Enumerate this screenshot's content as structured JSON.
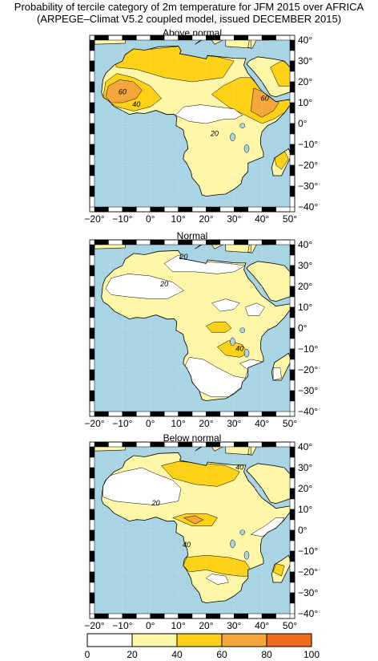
{
  "title": "Probability of tercile category of 2m temperature for JFM 2015 over AFRICA",
  "subtitle": "(ARPEGE–Climat V5.2 coupled model, issued DECEMBER  2015)",
  "colors": {
    "ocean": "#a8d4e4",
    "c0_20": "#ffffff",
    "c20_40": "#fff7a8",
    "c40_60": "#fcd116",
    "c60_80": "#f4a63a",
    "c80_100": "#ef6b1d"
  },
  "axes": {
    "lon_labels": [
      "−20°",
      "−10°",
      "0°",
      "10°",
      "20°",
      "30°",
      "40°",
      "50°"
    ],
    "lat_labels": [
      "40°",
      "30°",
      "20°",
      "10°",
      "0°",
      "−10°",
      "−20°",
      "−30°",
      "−40°"
    ]
  },
  "maps": [
    {
      "title": "Above normal",
      "contour_labels": [
        {
          "text": "60",
          "lon": -10,
          "lat": 14
        },
        {
          "text": "40",
          "lon": -5,
          "lat": 8
        },
        {
          "text": "20",
          "lon": 23,
          "lat": -6
        },
        {
          "text": "60",
          "lon": 41,
          "lat": 11
        }
      ]
    },
    {
      "title": "Normal",
      "contour_labels": [
        {
          "text": "20",
          "lon": 5,
          "lat": 20
        },
        {
          "text": "20",
          "lon": 12,
          "lat": 33
        },
        {
          "text": "40",
          "lon": 32,
          "lat": -11
        }
      ]
    },
    {
      "title": "Below normal",
      "contour_labels": [
        {
          "text": "40",
          "lon": 32,
          "lat": 29
        },
        {
          "text": "20",
          "lon": 2,
          "lat": 12
        },
        {
          "text": "40",
          "lon": 13,
          "lat": -8
        }
      ]
    }
  ],
  "legend": {
    "ticks": [
      "0",
      "20",
      "40",
      "60",
      "80",
      "100"
    ]
  }
}
